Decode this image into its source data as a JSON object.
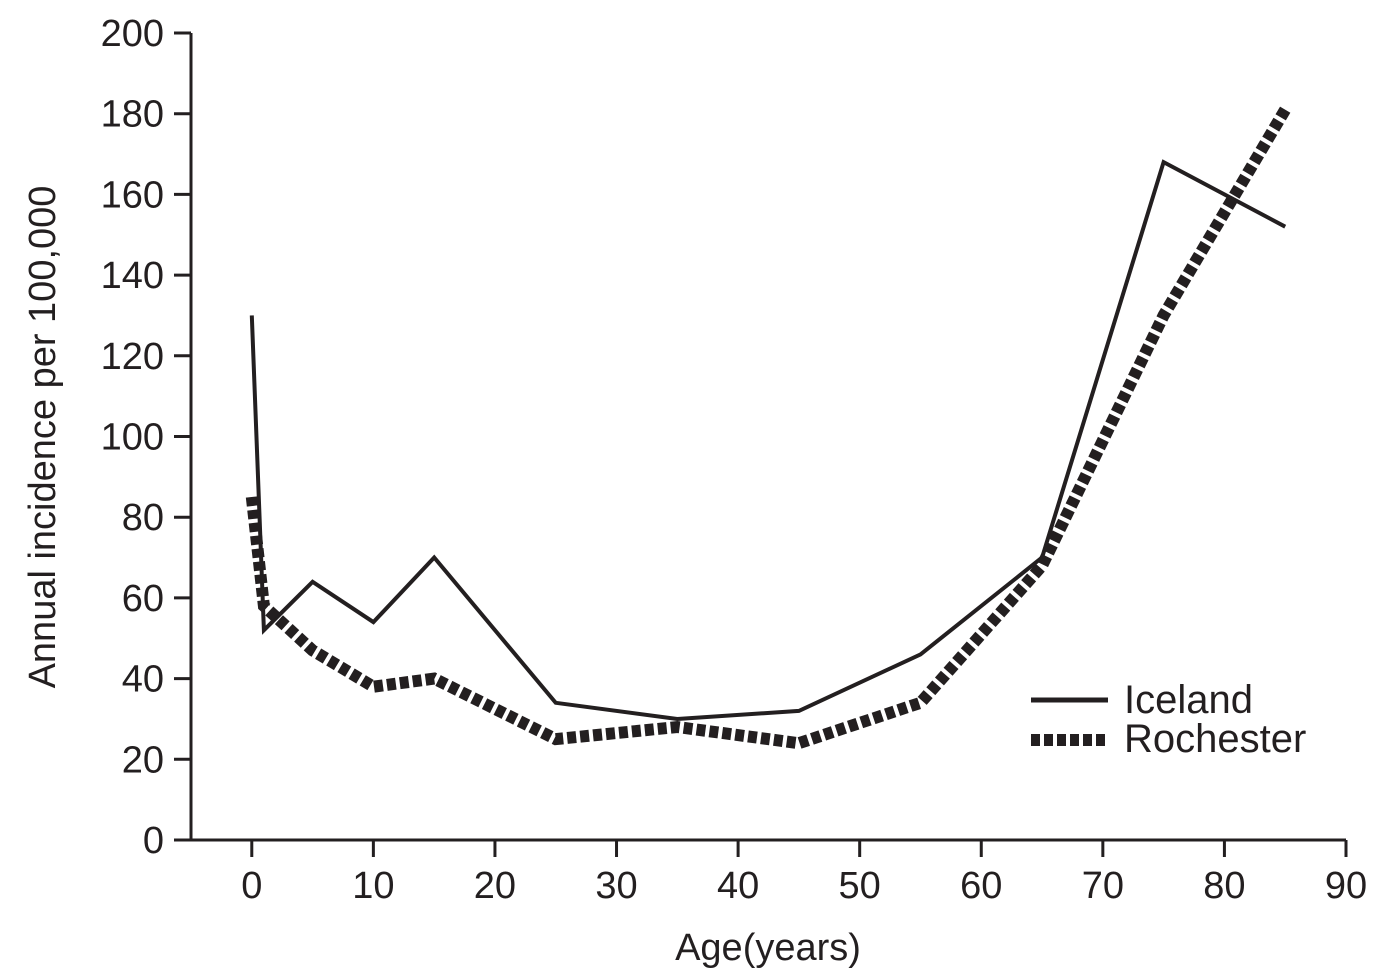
{
  "chart_data": {
    "type": "line",
    "title": "",
    "xlabel": "Age(years)",
    "ylabel": "Annual incidence per 100,000",
    "xlim": [
      -5,
      90
    ],
    "ylim": [
      0,
      200
    ],
    "xticks": [
      0,
      10,
      20,
      30,
      40,
      50,
      60,
      70,
      80,
      90
    ],
    "yticks": [
      0,
      20,
      40,
      60,
      80,
      100,
      120,
      140,
      160,
      180,
      200
    ],
    "grid": false,
    "legend_position": "lower-right",
    "series": [
      {
        "name": "Iceland",
        "style": "solid",
        "color": "#231f20",
        "x": [
          0,
          1,
          5,
          10,
          15,
          25,
          35,
          45,
          55,
          65,
          75,
          85
        ],
        "y": [
          130,
          52,
          64,
          54,
          70,
          34,
          30,
          32,
          46,
          70,
          168,
          152
        ]
      },
      {
        "name": "Rochester",
        "style": "dotted",
        "color": "#231f20",
        "x": [
          0,
          1,
          5,
          10,
          15,
          25,
          35,
          45,
          55,
          65,
          75,
          85
        ],
        "y": [
          85,
          58,
          47,
          38,
          40,
          25,
          28,
          24,
          34,
          68,
          130,
          181
        ]
      }
    ]
  }
}
